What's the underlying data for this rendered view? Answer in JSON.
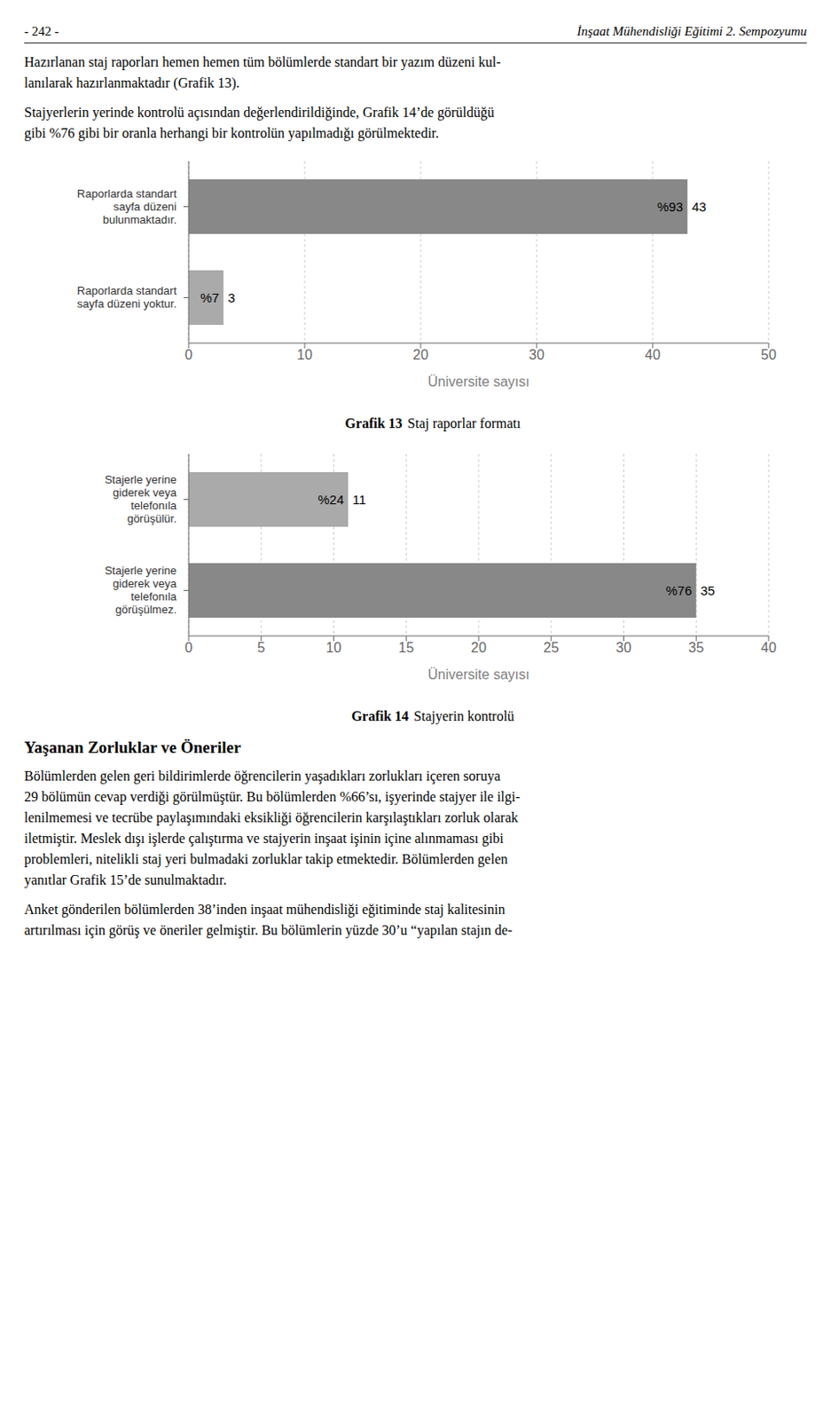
{
  "chart_data": [
    {
      "type": "bar",
      "orientation": "horizontal",
      "title": "Grafik 13",
      "subtitle": "Staj raporlar formatı",
      "annotations": [
        "- 242 -",
        "İnşaat Mühendisliği Eğitimi 2. Sempozyumu",
        "Hazırlanan staj raporları hemen hemen tüm bölümlerde standart bir yazım düzeni kul-\nlanılarak hazırlanmaktadır (Grafik 13).",
        "Stajyerlerin yerinde kontrolü açısından değerlendirildiğinde, Grafik 14’de görüldüğü\ngibi %76 gibi bir oranla herhangi bir kontrolün yapılmadığı görülmektedir."
      ],
      "categories": [
        "Raporlarda standart\nsayfa düzeni\nbulunmaktadır.",
        "Raporlarda standart\nsayfa düzeni yoktur."
      ],
      "values": [
        43,
        3
      ],
      "shares": [
        93,
        7
      ],
      "share_labels": [
        "%93",
        "%7"
      ],
      "colors": [
        "#888888",
        "#aaaaaa"
      ],
      "xlabel": "Üniversite sayısı",
      "xlim": [
        0,
        50
      ],
      "xticks": [
        0,
        10,
        20,
        30,
        40,
        50
      ],
      "grid": true,
      "data_labels": true
    },
    {
      "type": "bar",
      "orientation": "horizontal",
      "title": "Grafik 14",
      "subtitle": "Stajyerin kontrolü",
      "annotations": [
        "Yaşanan Zorluklar ve Öneriler",
        "Bölümlerden gelen geri bildirimlerde öğrencilerin yaşadıkları zorlukları içeren soruya\n29 bölümün cevap verdiği görülmüştür. Bu bölümlerden %66’sı, işyerinde stajyer ile ilgi-\nlenilmemesi ve tecrübe paylaşımındaki eksikliği öğrencilerin karşılaştıkları zorluk olarak\niletmiştir. Meslek dışı işlerde çalıştırma ve stajyerin inşaat işinin içine alınmaması gibi\nproblemleri, nitelikli staj yeri bulmadaki zorluklar takip etmektedir. Bölümlerden gelen\nyanıtlar Grafik 15’de sunulmaktadır.",
        "Anket gönderilen bölümlerden 38’inden inşaat mühendisliği eğitiminde staj kalitesinin\nartırılması için görüş ve öneriler gelmiştir. Bu bölümlerin yüzde 30’u “yapılan stajın de-"
      ],
      "categories": [
        "Stajerle yerine\ngiderek veya\ntelefonıla\ngörüşülür.",
        "Stajerle yerine\ngiderek veya\ntelefonıla\ngörüşülmez."
      ],
      "values": [
        11,
        35
      ],
      "shares": [
        24,
        76
      ],
      "share_labels": [
        "%24",
        "%76"
      ],
      "colors": [
        "#aaaaaa",
        "#888888"
      ],
      "xlabel": "Üniversite sayısı",
      "xlim": [
        0,
        40
      ],
      "xticks": [
        0,
        5,
        10,
        15,
        20,
        25,
        30,
        35,
        40
      ],
      "grid": true,
      "data_labels": true
    }
  ]
}
